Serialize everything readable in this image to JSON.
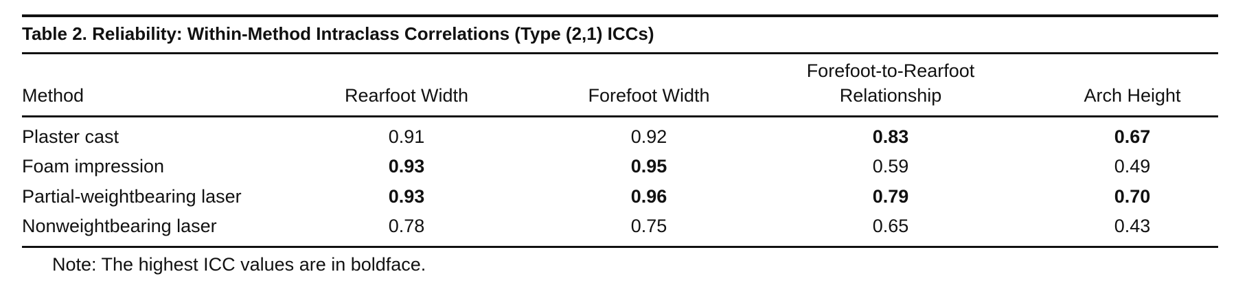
{
  "table": {
    "title": "Table 2. Reliability: Within-Method Intraclass Correlations (Type (2,1) ICCs)",
    "headers": [
      "Method",
      "Rearfoot Width",
      "Forefoot Width",
      "Forefoot-to-Rearfoot Relationship",
      "Arch Height"
    ],
    "rows": [
      [
        {
          "text": "Plaster cast",
          "bold": false
        },
        {
          "text": "0.91",
          "bold": false
        },
        {
          "text": "0.92",
          "bold": false
        },
        {
          "text": "0.83",
          "bold": true
        },
        {
          "text": "0.67",
          "bold": true
        }
      ],
      [
        {
          "text": "Foam impression",
          "bold": false
        },
        {
          "text": "0.93",
          "bold": true
        },
        {
          "text": "0.95",
          "bold": true
        },
        {
          "text": "0.59",
          "bold": false
        },
        {
          "text": "0.49",
          "bold": false
        }
      ],
      [
        {
          "text": "Partial-weightbearing laser",
          "bold": false
        },
        {
          "text": "0.93",
          "bold": true
        },
        {
          "text": "0.96",
          "bold": true
        },
        {
          "text": "0.79",
          "bold": true
        },
        {
          "text": "0.70",
          "bold": true
        }
      ],
      [
        {
          "text": "Nonweightbearing laser",
          "bold": false
        },
        {
          "text": "0.78",
          "bold": false
        },
        {
          "text": "0.75",
          "bold": false
        },
        {
          "text": "0.65",
          "bold": false
        },
        {
          "text": "0.43",
          "bold": false
        }
      ]
    ],
    "note": "Note: The highest ICC values are in boldface."
  }
}
